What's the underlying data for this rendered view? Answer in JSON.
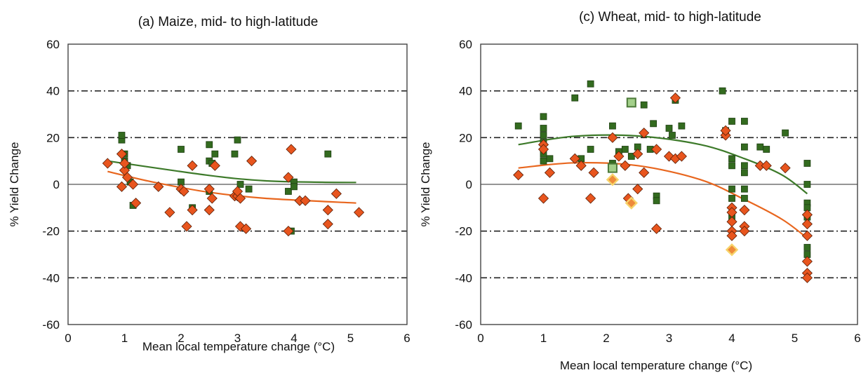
{
  "chart_data": [
    {
      "type": "scatter",
      "title": "(a) Maize, mid- to high-latitude",
      "xlabel": "Mean local temperature change (°C)",
      "ylabel": "% Yield Change",
      "xlim": [
        0,
        6
      ],
      "ylim": [
        -60,
        60
      ],
      "xticks": [
        "0",
        "1",
        "2",
        "3",
        "4",
        "5",
        "6"
      ],
      "yticks": [
        "60",
        "40",
        "20",
        "0",
        "-20",
        "-40",
        "-60"
      ],
      "grid": "dash-dot horizontal",
      "series": [
        {
          "marker": "square",
          "color": "#336b1f",
          "points": [
            [
              0.95,
              19
            ],
            [
              0.95,
              21
            ],
            [
              1.0,
              13
            ],
            [
              1.0,
              10
            ],
            [
              1.05,
              8
            ],
            [
              1.1,
              1
            ],
            [
              1.15,
              -9
            ],
            [
              2.0,
              15
            ],
            [
              2.0,
              1
            ],
            [
              2.2,
              -10
            ],
            [
              2.5,
              17
            ],
            [
              2.5,
              10
            ],
            [
              2.5,
              -3
            ],
            [
              2.55,
              9
            ],
            [
              2.6,
              13
            ],
            [
              2.95,
              13
            ],
            [
              3.0,
              19
            ],
            [
              3.05,
              0
            ],
            [
              3.2,
              -2
            ],
            [
              3.9,
              -3
            ],
            [
              3.95,
              -20
            ],
            [
              4.0,
              1
            ],
            [
              4.0,
              -1
            ],
            [
              4.6,
              13
            ]
          ]
        },
        {
          "marker": "diamond",
          "color": "#e8551e",
          "points": [
            [
              0.7,
              9
            ],
            [
              0.95,
              13
            ],
            [
              0.95,
              -1
            ],
            [
              1.0,
              6
            ],
            [
              1.0,
              9
            ],
            [
              1.05,
              3
            ],
            [
              1.15,
              0
            ],
            [
              1.2,
              -8
            ],
            [
              1.6,
              -1
            ],
            [
              1.8,
              -12
            ],
            [
              2.0,
              -2
            ],
            [
              2.05,
              -3
            ],
            [
              2.1,
              -18
            ],
            [
              2.2,
              -11
            ],
            [
              2.2,
              8
            ],
            [
              2.5,
              -2
            ],
            [
              2.5,
              -11
            ],
            [
              2.55,
              -6
            ],
            [
              2.6,
              8
            ],
            [
              2.95,
              -5
            ],
            [
              3.0,
              -5
            ],
            [
              3.05,
              -18
            ],
            [
              3.0,
              -3
            ],
            [
              3.05,
              -6
            ],
            [
              3.15,
              -19
            ],
            [
              3.25,
              10
            ],
            [
              3.9,
              3
            ],
            [
              3.9,
              -20
            ],
            [
              3.95,
              15
            ],
            [
              4.1,
              -7
            ],
            [
              4.2,
              -7
            ],
            [
              4.6,
              -11
            ],
            [
              4.6,
              -17
            ],
            [
              4.75,
              -4
            ],
            [
              5.15,
              -12
            ]
          ]
        },
        {
          "type": "line",
          "color": "#3d7a2a",
          "points": [
            [
              0.7,
              10
            ],
            [
              2.5,
              3.8
            ],
            [
              3.5,
              1.5
            ],
            [
              4.5,
              0.9
            ],
            [
              5.1,
              0.8
            ]
          ]
        },
        {
          "type": "line",
          "color": "#e8661e",
          "points": [
            [
              0.7,
              5.5
            ],
            [
              1.5,
              1
            ],
            [
              2.5,
              -3.4
            ],
            [
              3.5,
              -6
            ],
            [
              5.1,
              -8
            ]
          ]
        }
      ]
    },
    {
      "type": "scatter",
      "title": "(c) Wheat, mid- to high-latitude",
      "xlabel": "Mean local temperature change (°C)",
      "ylabel": "% Yield Change",
      "xlim": [
        0,
        6
      ],
      "ylim": [
        -60,
        60
      ],
      "xticks": [
        "0",
        "1",
        "2",
        "3",
        "4",
        "5",
        "6"
      ],
      "yticks": [
        "60",
        "40",
        "20",
        "0",
        "-20",
        "-40",
        "-60"
      ],
      "grid": "dash-dot horizontal",
      "series": [
        {
          "marker": "square",
          "color": "#336b1f",
          "points": [
            [
              0.6,
              25
            ],
            [
              1.0,
              29
            ],
            [
              1.0,
              24
            ],
            [
              1.0,
              21
            ],
            [
              1.0,
              18
            ],
            [
              1.0,
              13
            ],
            [
              1.0,
              10
            ],
            [
              1.1,
              11
            ],
            [
              1.5,
              37
            ],
            [
              1.6,
              11
            ],
            [
              1.75,
              43
            ],
            [
              1.75,
              15
            ],
            [
              2.1,
              25
            ],
            [
              2.1,
              9
            ],
            [
              2.2,
              14
            ],
            [
              2.3,
              15
            ],
            [
              2.4,
              12
            ],
            [
              2.5,
              16
            ],
            [
              2.6,
              34
            ],
            [
              2.7,
              15
            ],
            [
              2.75,
              26
            ],
            [
              2.8,
              -5
            ],
            [
              2.8,
              -7
            ],
            [
              3.0,
              24
            ],
            [
              3.05,
              21
            ],
            [
              3.1,
              36
            ],
            [
              3.2,
              25
            ],
            [
              3.85,
              40
            ],
            [
              3.9,
              23
            ],
            [
              4.0,
              27
            ],
            [
              4.0,
              11
            ],
            [
              4.0,
              8
            ],
            [
              4.0,
              -2
            ],
            [
              4.0,
              -6
            ],
            [
              4.0,
              -14
            ],
            [
              4.2,
              27
            ],
            [
              4.2,
              16
            ],
            [
              4.2,
              8
            ],
            [
              4.2,
              5
            ],
            [
              4.2,
              -2
            ],
            [
              4.2,
              -6
            ],
            [
              4.45,
              16
            ],
            [
              4.55,
              15
            ],
            [
              4.85,
              22
            ],
            [
              5.2,
              9
            ],
            [
              5.2,
              0
            ],
            [
              5.2,
              -8
            ],
            [
              5.2,
              -10
            ],
            [
              5.2,
              -14
            ],
            [
              5.2,
              -27
            ],
            [
              5.2,
              -30
            ]
          ]
        },
        {
          "marker": "diamond",
          "color": "#e8551e",
          "points": [
            [
              0.6,
              4
            ],
            [
              1.0,
              17
            ],
            [
              1.0,
              15
            ],
            [
              1.0,
              -6
            ],
            [
              1.1,
              5
            ],
            [
              1.5,
              11
            ],
            [
              1.6,
              8
            ],
            [
              1.75,
              -6
            ],
            [
              1.8,
              5
            ],
            [
              2.1,
              20
            ],
            [
              2.2,
              12
            ],
            [
              2.3,
              8
            ],
            [
              2.35,
              -6
            ],
            [
              2.5,
              13
            ],
            [
              2.5,
              -2
            ],
            [
              2.6,
              22
            ],
            [
              2.6,
              5
            ],
            [
              2.8,
              15
            ],
            [
              2.8,
              -19
            ],
            [
              3.0,
              12
            ],
            [
              3.1,
              37
            ],
            [
              3.1,
              11
            ],
            [
              3.2,
              12
            ],
            [
              3.9,
              21
            ],
            [
              3.9,
              23
            ],
            [
              4.0,
              -10
            ],
            [
              4.0,
              -12
            ],
            [
              4.0,
              -16
            ],
            [
              4.0,
              -20
            ],
            [
              4.0,
              -22
            ],
            [
              4.2,
              -11
            ],
            [
              4.2,
              -18
            ],
            [
              4.2,
              -20
            ],
            [
              4.45,
              8
            ],
            [
              4.55,
              8
            ],
            [
              4.85,
              7
            ],
            [
              5.2,
              -13
            ],
            [
              5.2,
              -17
            ],
            [
              5.2,
              -22
            ],
            [
              5.2,
              -33
            ],
            [
              5.2,
              -38
            ],
            [
              5.2,
              -40
            ]
          ]
        },
        {
          "marker": "square-light",
          "color": "#a3d08a",
          "points": [
            [
              2.1,
              7
            ],
            [
              2.4,
              35
            ]
          ]
        },
        {
          "marker": "diamond-light",
          "color": "#f7d46a",
          "points": [
            [
              2.1,
              2
            ],
            [
              2.4,
              -8
            ],
            [
              4.0,
              -28
            ]
          ]
        },
        {
          "type": "line",
          "color": "#3d7a2a",
          "points": [
            [
              0.6,
              17
            ],
            [
              1.5,
              20.6
            ],
            [
              2.5,
              20.7
            ],
            [
              3.5,
              17
            ],
            [
              4.2,
              11
            ],
            [
              4.8,
              4
            ],
            [
              5.2,
              -4
            ]
          ]
        },
        {
          "type": "line",
          "color": "#e8661e",
          "points": [
            [
              0.6,
              7
            ],
            [
              1.5,
              9.2
            ],
            [
              2.5,
              8
            ],
            [
              3.5,
              2
            ],
            [
              4.2,
              -6.5
            ],
            [
              4.8,
              -15
            ],
            [
              5.2,
              -23
            ]
          ]
        }
      ]
    }
  ]
}
